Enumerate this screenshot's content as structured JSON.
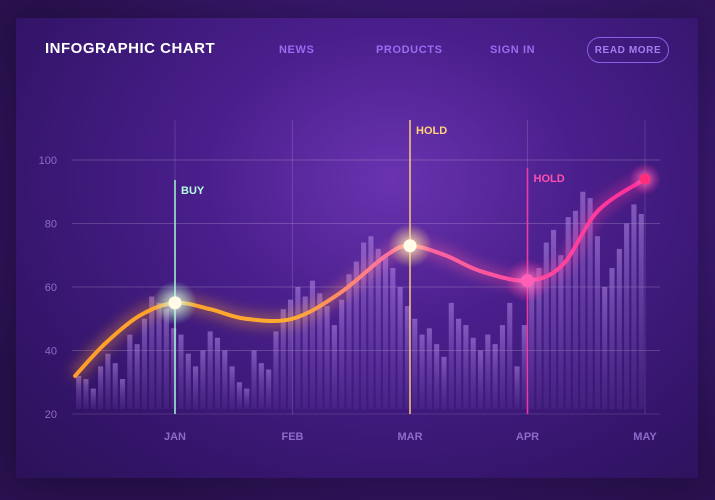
{
  "header": {
    "title": "INFOGRAPHIC CHART",
    "nav": [
      "NEWS",
      "PRODUCTS",
      "SIGN IN"
    ],
    "cta": "READ MORE"
  },
  "colors": {
    "accent_orange": "#ffa52e",
    "accent_pink": "#ff2d9b",
    "buy_green": "#a8ffd8",
    "hold_yellow": "#ffd27a",
    "hold_pink": "#ff3aa5"
  },
  "chart_data": {
    "type": "line",
    "title": "",
    "xlabel": "",
    "ylabel": "",
    "ylim": [
      20,
      100
    ],
    "grid": true,
    "yticks": [
      20,
      40,
      60,
      80,
      100
    ],
    "categories": [
      "JAN",
      "FEB",
      "MAR",
      "APR",
      "MAY"
    ],
    "series": [
      {
        "x": [
          -0.85,
          -0.6,
          -0.3,
          0,
          0.3,
          0.6,
          1.0,
          1.4,
          1.8,
          2.0,
          2.3,
          2.6,
          3.0,
          3.3,
          3.6,
          4.0
        ],
        "values": [
          32,
          42,
          51,
          55,
          53,
          50,
          50,
          58,
          70,
          73,
          70,
          65,
          62,
          67,
          84,
          94
        ]
      }
    ],
    "bars": {
      "x_start": -0.85,
      "x_end": 4.0,
      "values": [
        32,
        31,
        28,
        35,
        39,
        36,
        31,
        45,
        42,
        50,
        57,
        55,
        53,
        47,
        45,
        39,
        35,
        40,
        46,
        44,
        40,
        35,
        30,
        28,
        40,
        36,
        34,
        46,
        53,
        56,
        60,
        57,
        62,
        58,
        54,
        48,
        56,
        64,
        68,
        74,
        76,
        72,
        70,
        66,
        60,
        54,
        50,
        45,
        47,
        42,
        38,
        55,
        50,
        48,
        44,
        40,
        45,
        42,
        48,
        55,
        35,
        48,
        62,
        66,
        74,
        78,
        70,
        82,
        84,
        90,
        88,
        76,
        60,
        66,
        72,
        80,
        86,
        83
      ]
    },
    "annotations": [
      {
        "label": "BUY",
        "x": 0,
        "y": 55
      },
      {
        "label": "HOLD",
        "x": 2,
        "y": 73
      },
      {
        "label": "HOLD",
        "x": 3,
        "y": 62
      }
    ],
    "end_point": {
      "x": 4,
      "y": 94
    }
  }
}
